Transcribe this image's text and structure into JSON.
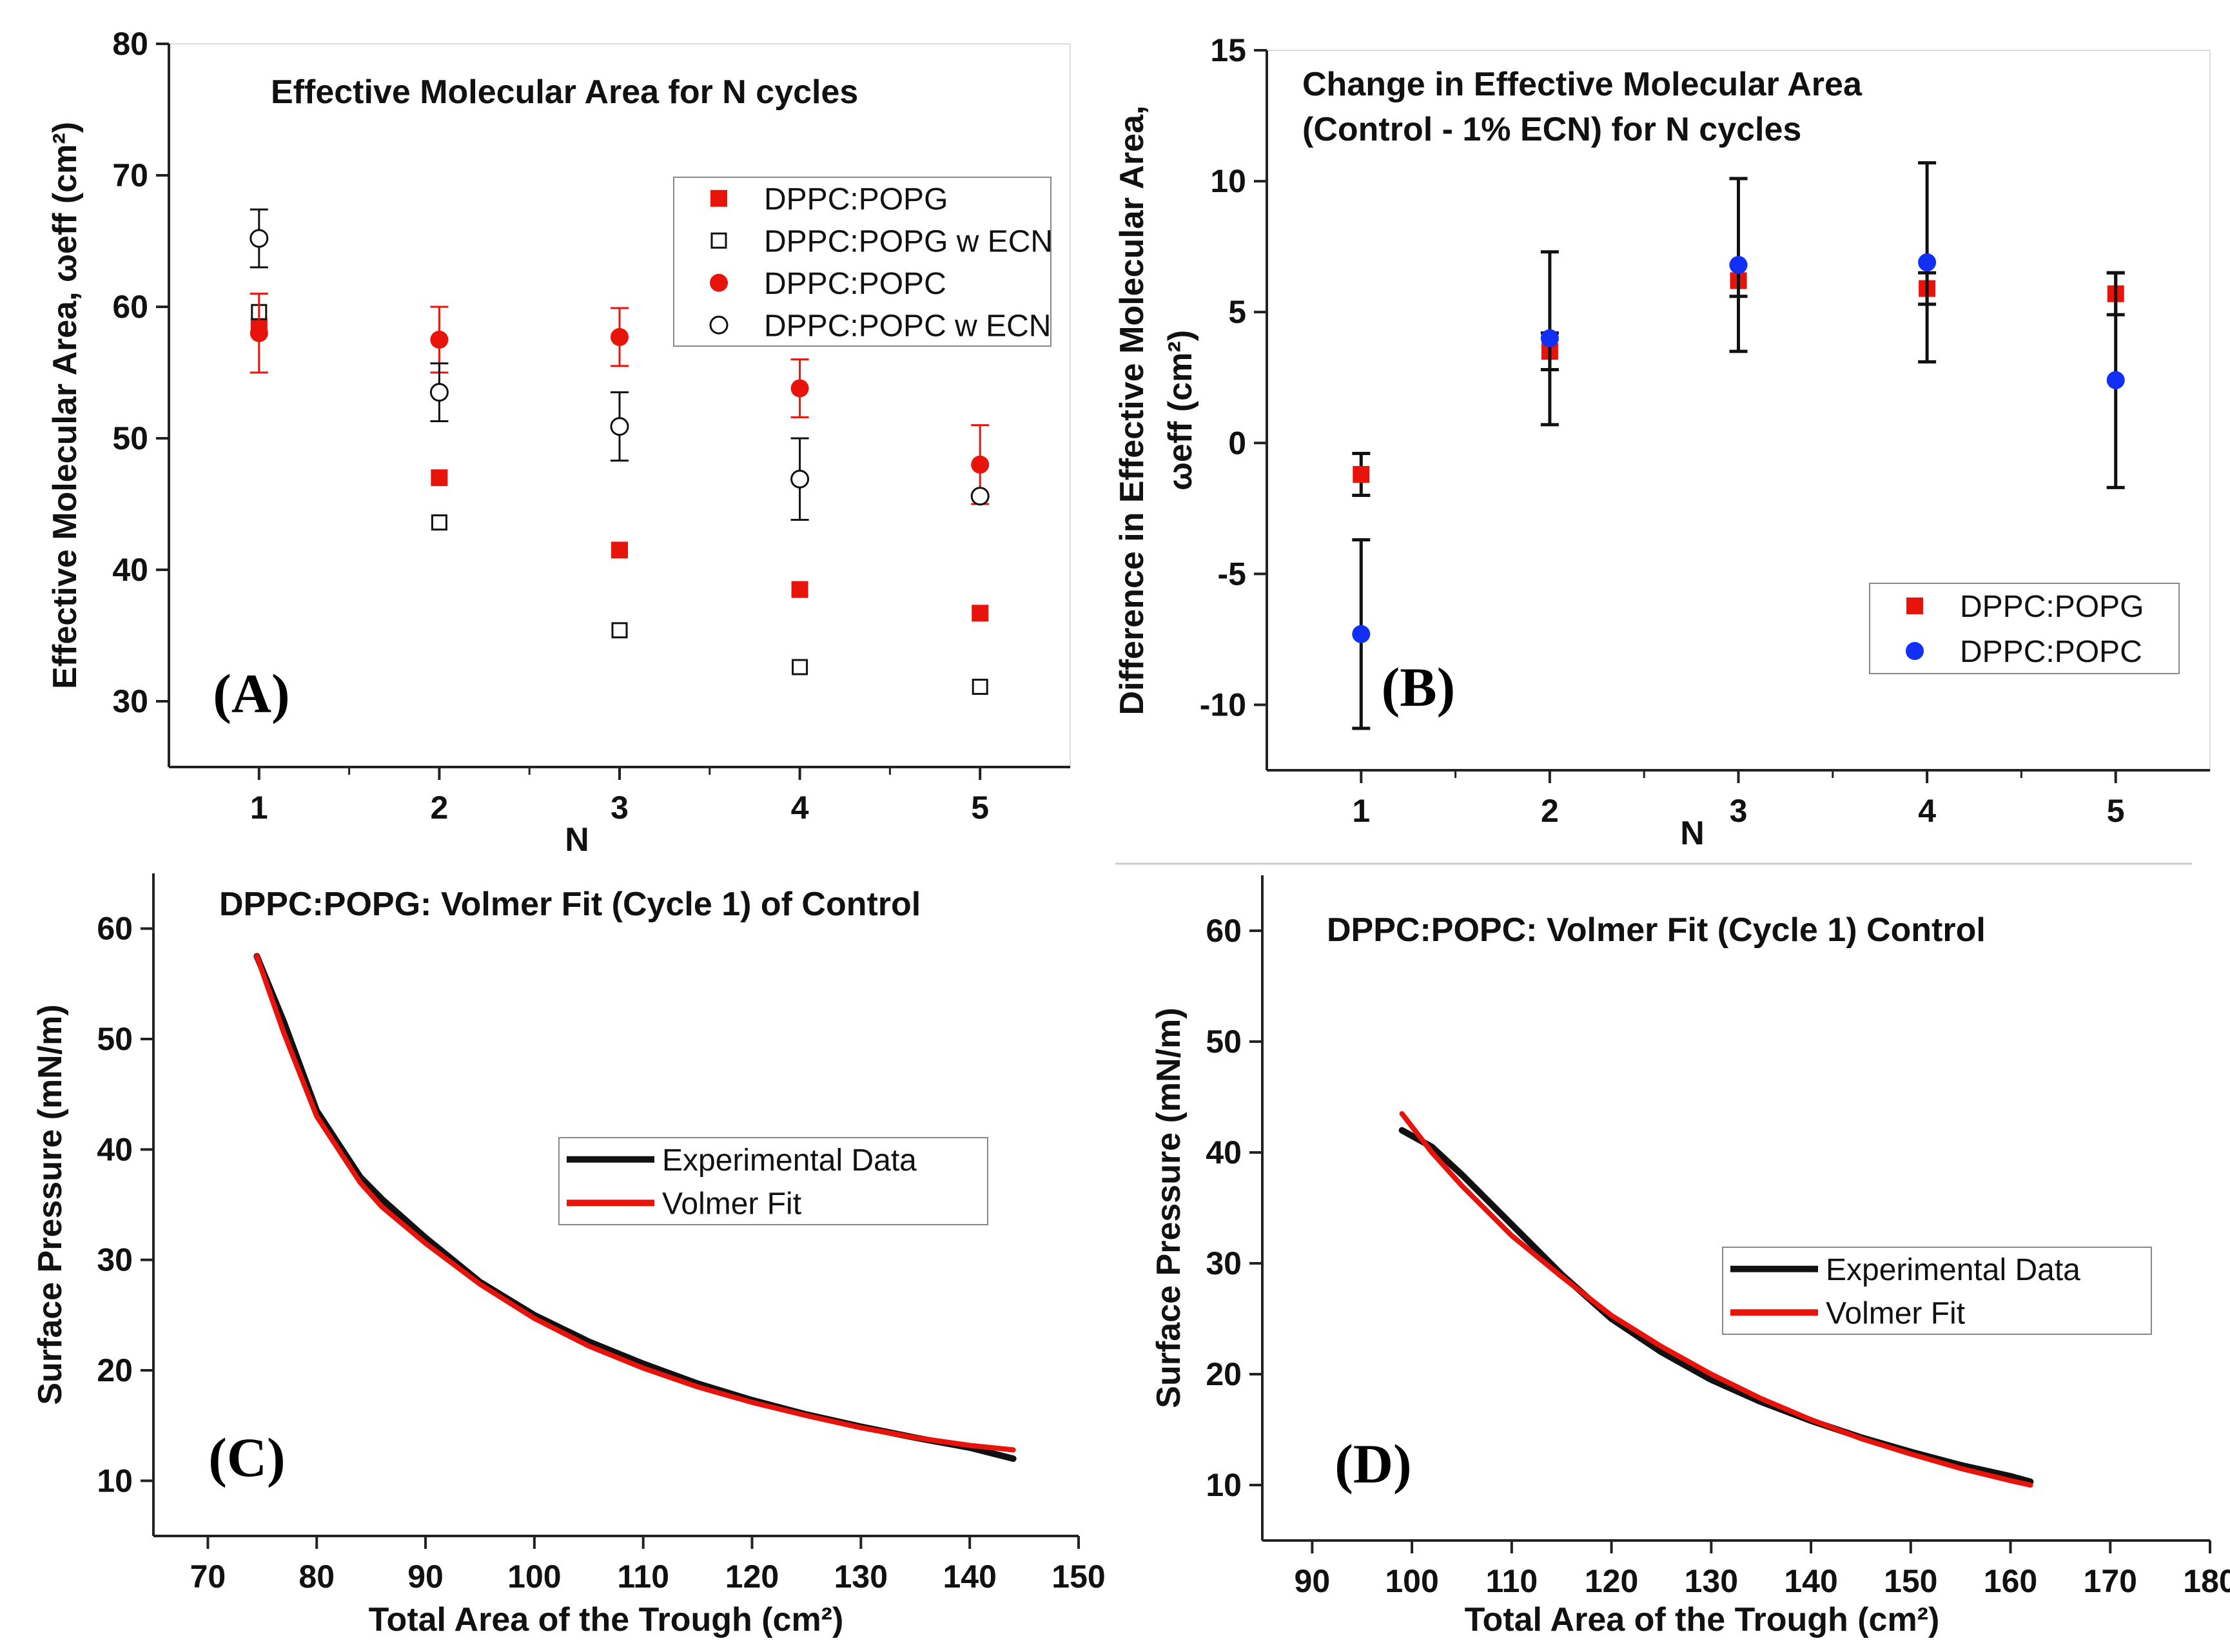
{
  "colors": {
    "red": "#e8140b",
    "blue": "#1230f5",
    "black": "#111111",
    "frame": "#222222"
  },
  "chart_data": [
    {
      "id": "A",
      "type": "scatter",
      "panel_label": "(A)",
      "title": "Effective Molecular Area for N cycles",
      "xlabel": "N",
      "ylabel": "Effective Molecular Area, ωeff (cm²)",
      "xlim": [
        0.5,
        5.5
      ],
      "ylim": [
        25,
        80
      ],
      "xticks": [
        "1",
        "2",
        "3",
        "4",
        "5"
      ],
      "yticks": [
        "30",
        "40",
        "50",
        "60",
        "70",
        "80"
      ],
      "legend_position": "top-right",
      "series": [
        {
          "name": "DPPC:POPG",
          "marker": "square-filled",
          "color": "red",
          "x": [
            1,
            2,
            3,
            4,
            5
          ],
          "y": [
            58.5,
            47.0,
            41.5,
            38.5,
            36.7
          ],
          "err": [
            0,
            0,
            0,
            0,
            0
          ]
        },
        {
          "name": "DPPC:POPG w ECN",
          "marker": "square-open",
          "color": "black",
          "x": [
            1,
            2,
            3,
            4,
            5
          ],
          "y": [
            59.6,
            43.6,
            35.4,
            32.6,
            31.1
          ],
          "err": [
            0,
            0,
            0,
            0,
            0
          ]
        },
        {
          "name": "DPPC:POPC",
          "marker": "circle-filled",
          "color": "red",
          "x": [
            1,
            2,
            3,
            4,
            5
          ],
          "y": [
            58.0,
            57.5,
            57.7,
            53.8,
            48.0
          ],
          "err": [
            3.0,
            2.5,
            2.2,
            2.2,
            3.0
          ]
        },
        {
          "name": "DPPC:POPC w ECN",
          "marker": "circle-open",
          "color": "black",
          "x": [
            1,
            2,
            3,
            4,
            5
          ],
          "y": [
            65.2,
            53.5,
            50.9,
            46.9,
            45.6
          ],
          "err": [
            2.2,
            2.2,
            2.6,
            3.1,
            0
          ]
        }
      ]
    },
    {
      "id": "B",
      "type": "scatter",
      "panel_label": "(B)",
      "title": "Change in Effective Molecular Area",
      "subtitle": "(Control - 1% ECN) for N cycles",
      "xlabel": "N",
      "ylabel": "Difference in Effective Molecular Area,",
      "ylabel2": "ωeff (cm²)",
      "xlim": [
        0.5,
        5.5
      ],
      "ylim": [
        -12.5,
        15
      ],
      "xticks": [
        "1",
        "2",
        "3",
        "4",
        "5"
      ],
      "yticks": [
        "-10",
        "-5",
        "0",
        "5",
        "10",
        "15"
      ],
      "legend_position": "bottom-right",
      "series": [
        {
          "name": "DPPC:POPG",
          "marker": "square-filled",
          "color": "red",
          "x": [
            1,
            2,
            3,
            4,
            5
          ],
          "y": [
            -1.2,
            3.5,
            6.2,
            5.9,
            5.7
          ],
          "err": [
            0.8,
            0.7,
            0.6,
            0.6,
            0.8
          ]
        },
        {
          "name": "DPPC:POPC",
          "marker": "circle-filled",
          "color": "blue",
          "x": [
            1,
            2,
            3,
            4,
            5
          ],
          "y": [
            -7.3,
            4.0,
            6.8,
            6.9,
            2.4
          ],
          "err": [
            3.6,
            3.3,
            3.3,
            3.8,
            4.1
          ]
        }
      ]
    },
    {
      "id": "C",
      "type": "line",
      "panel_label": "(C)",
      "title": "DPPC:POPG: Volmer Fit (Cycle 1) of Control",
      "xlabel": "Total Area of the Trough (cm²)",
      "ylabel": "Surface Pressure (mN/m)",
      "xlim": [
        65,
        150
      ],
      "ylim": [
        5,
        65
      ],
      "xticks": [
        "70",
        "80",
        "90",
        "100",
        "110",
        "120",
        "130",
        "140",
        "150"
      ],
      "yticks": [
        "10",
        "20",
        "30",
        "40",
        "50",
        "60"
      ],
      "legend_position": "center-right",
      "series": [
        {
          "name": "Experimental Data",
          "color": "black",
          "x": [
            74.5,
            77,
            80,
            84,
            86,
            90,
            95,
            100,
            105,
            110,
            115,
            120,
            125,
            130,
            135,
            140,
            144
          ],
          "y": [
            57.5,
            51.5,
            43.5,
            37.5,
            35.5,
            32.0,
            28.0,
            25.0,
            22.6,
            20.6,
            18.8,
            17.3,
            16.0,
            14.9,
            13.9,
            13.0,
            12.0
          ]
        },
        {
          "name": "Volmer Fit",
          "color": "red",
          "x": [
            74.5,
            77,
            80,
            84,
            86,
            90,
            95,
            100,
            105,
            110,
            115,
            120,
            125,
            130,
            135,
            140,
            144
          ],
          "y": [
            57.5,
            50.5,
            43.0,
            37.0,
            34.8,
            31.5,
            27.8,
            24.7,
            22.2,
            20.2,
            18.5,
            17.1,
            15.9,
            14.8,
            13.9,
            13.2,
            12.8
          ]
        }
      ]
    },
    {
      "id": "D",
      "type": "line",
      "panel_label": "(D)",
      "title": "DPPC:POPC: Volmer Fit (Cycle 1) Control",
      "xlabel": "Total Area of the Trough (cm²)",
      "ylabel": "Surface Pressure (mN/m)",
      "xlim": [
        85,
        180
      ],
      "ylim": [
        5,
        65
      ],
      "xticks": [
        "90",
        "100",
        "110",
        "120",
        "130",
        "140",
        "150",
        "160",
        "170",
        "180"
      ],
      "yticks": [
        "10",
        "20",
        "30",
        "40",
        "50",
        "60"
      ],
      "legend_position": "center-right",
      "series": [
        {
          "name": "Experimental Data",
          "color": "black",
          "x": [
            99,
            102,
            105,
            110,
            115,
            120,
            125,
            130,
            135,
            140,
            145,
            150,
            155,
            160,
            162
          ],
          "y": [
            42.0,
            40.5,
            38.0,
            33.5,
            29.0,
            25.0,
            22.0,
            19.5,
            17.5,
            15.8,
            14.3,
            13.0,
            11.8,
            10.8,
            10.3
          ]
        },
        {
          "name": "Volmer Fit",
          "color": "red",
          "x": [
            99,
            102,
            105,
            110,
            115,
            120,
            125,
            130,
            135,
            140,
            145,
            150,
            155,
            160,
            162
          ],
          "y": [
            43.5,
            40.0,
            37.0,
            32.5,
            28.8,
            25.3,
            22.5,
            20.0,
            17.8,
            15.9,
            14.2,
            12.8,
            11.5,
            10.4,
            10.0
          ]
        }
      ]
    }
  ]
}
